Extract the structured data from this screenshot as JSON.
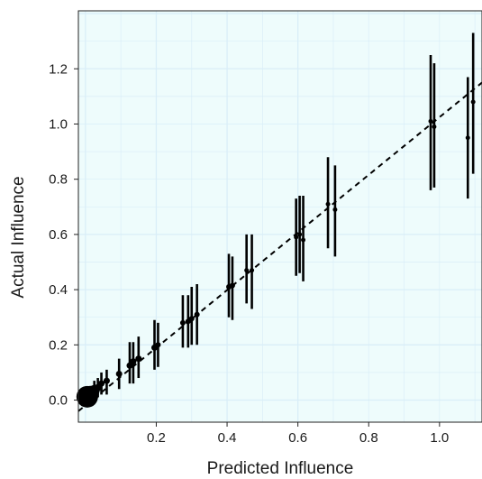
{
  "chart_data": {
    "type": "scatter",
    "title": "",
    "xlabel": "Predicted Influence",
    "ylabel": "Actual Influence",
    "xlim": [
      -0.02,
      1.12
    ],
    "ylim": [
      -0.08,
      1.41
    ],
    "x_ticks": [
      0.2,
      0.4,
      0.6,
      0.8,
      1.0
    ],
    "x_tick_labels": [
      "0.2",
      "0.4",
      "0.6",
      "0.8",
      "1.0"
    ],
    "y_ticks": [
      0.0,
      0.2,
      0.4,
      0.6,
      0.8,
      1.0,
      1.2
    ],
    "y_tick_labels": [
      "0.0",
      "0.2",
      "0.4",
      "0.6",
      "0.8",
      "1.0",
      "1.2"
    ],
    "grid": true,
    "reference_line": {
      "style": "dashed",
      "from": [
        -0.02,
        -0.04
      ],
      "to": [
        1.12,
        1.15
      ]
    },
    "colors": {
      "panel_background": "#eefcfc",
      "grid": "#d9eef8",
      "marks": "#000000"
    },
    "points": [
      {
        "x": 0.005,
        "y": 0.012,
        "lo": 0.0,
        "hi": 0.03,
        "size": 12
      },
      {
        "x": 0.01,
        "y": 0.018,
        "lo": 0.0,
        "hi": 0.04,
        "size": 10
      },
      {
        "x": 0.015,
        "y": 0.022,
        "lo": 0.0,
        "hi": 0.05,
        "size": 9
      },
      {
        "x": 0.025,
        "y": 0.035,
        "lo": 0.0,
        "hi": 0.07,
        "size": 6
      },
      {
        "x": 0.035,
        "y": 0.045,
        "lo": 0.01,
        "hi": 0.08,
        "size": 4
      },
      {
        "x": 0.045,
        "y": 0.06,
        "lo": 0.02,
        "hi": 0.1,
        "size": 3.5
      },
      {
        "x": 0.06,
        "y": 0.07,
        "lo": 0.02,
        "hi": 0.11,
        "size": 3.5
      },
      {
        "x": 0.095,
        "y": 0.095,
        "lo": 0.04,
        "hi": 0.15,
        "size": 3.5
      },
      {
        "x": 0.125,
        "y": 0.125,
        "lo": 0.06,
        "hi": 0.21,
        "size": 3.5
      },
      {
        "x": 0.135,
        "y": 0.14,
        "lo": 0.06,
        "hi": 0.21,
        "size": 3.5
      },
      {
        "x": 0.15,
        "y": 0.15,
        "lo": 0.08,
        "hi": 0.23,
        "size": 3.5
      },
      {
        "x": 0.195,
        "y": 0.19,
        "lo": 0.11,
        "hi": 0.29,
        "size": 3.5
      },
      {
        "x": 0.205,
        "y": 0.2,
        "lo": 0.12,
        "hi": 0.28,
        "size": 3
      },
      {
        "x": 0.275,
        "y": 0.28,
        "lo": 0.19,
        "hi": 0.38,
        "size": 3
      },
      {
        "x": 0.29,
        "y": 0.285,
        "lo": 0.19,
        "hi": 0.38,
        "size": 3
      },
      {
        "x": 0.3,
        "y": 0.295,
        "lo": 0.2,
        "hi": 0.41,
        "size": 3
      },
      {
        "x": 0.315,
        "y": 0.31,
        "lo": 0.2,
        "hi": 0.42,
        "size": 3
      },
      {
        "x": 0.405,
        "y": 0.41,
        "lo": 0.3,
        "hi": 0.53,
        "size": 3
      },
      {
        "x": 0.415,
        "y": 0.415,
        "lo": 0.29,
        "hi": 0.52,
        "size": 3
      },
      {
        "x": 0.455,
        "y": 0.47,
        "lo": 0.35,
        "hi": 0.6,
        "size": 2.5
      },
      {
        "x": 0.47,
        "y": 0.47,
        "lo": 0.33,
        "hi": 0.6,
        "size": 2.5
      },
      {
        "x": 0.595,
        "y": 0.59,
        "lo": 0.45,
        "hi": 0.73,
        "size": 2.5
      },
      {
        "x": 0.605,
        "y": 0.6,
        "lo": 0.46,
        "hi": 0.74,
        "size": 2.5
      },
      {
        "x": 0.615,
        "y": 0.58,
        "lo": 0.43,
        "hi": 0.74,
        "size": 2.5
      },
      {
        "x": 0.685,
        "y": 0.71,
        "lo": 0.55,
        "hi": 0.88,
        "size": 2.5
      },
      {
        "x": 0.705,
        "y": 0.69,
        "lo": 0.52,
        "hi": 0.85,
        "size": 2.5
      },
      {
        "x": 0.975,
        "y": 1.01,
        "lo": 0.76,
        "hi": 1.25,
        "size": 2.5
      },
      {
        "x": 0.985,
        "y": 0.99,
        "lo": 0.77,
        "hi": 1.22,
        "size": 2.5
      },
      {
        "x": 1.08,
        "y": 0.95,
        "lo": 0.73,
        "hi": 1.17,
        "size": 2.5
      },
      {
        "x": 1.095,
        "y": 1.08,
        "lo": 0.82,
        "hi": 1.33,
        "size": 2.5
      }
    ]
  }
}
